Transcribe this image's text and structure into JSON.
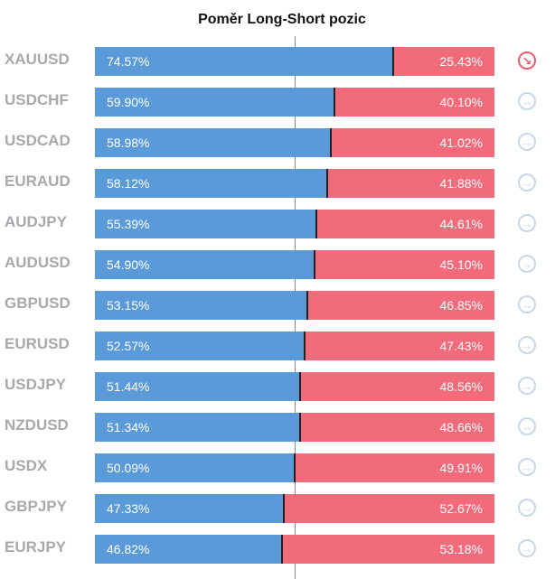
{
  "chart_data": {
    "type": "bar",
    "title": "Poměr Long-Short pozic",
    "categories": [
      "XAUUSD",
      "USDCHF",
      "USDCAD",
      "EURAUD",
      "AUDJPY",
      "AUDUSD",
      "GBPUSD",
      "EURUSD",
      "USDJPY",
      "NZDUSD",
      "USDX",
      "GBPJPY",
      "EURJPY"
    ],
    "series": [
      {
        "values": [
          74.57,
          59.9,
          58.98,
          58.12,
          55.39,
          54.9,
          53.15,
          52.57,
          51.44,
          51.34,
          50.09,
          47.33,
          46.82
        ]
      },
      {
        "values": [
          25.43,
          40.1,
          41.02,
          41.88,
          44.61,
          45.1,
          46.85,
          47.43,
          48.56,
          48.66,
          49.91,
          52.67,
          53.18
        ]
      }
    ],
    "long_labels": [
      "74.57%",
      "59.90%",
      "58.98%",
      "58.12%",
      "55.39%",
      "54.90%",
      "53.15%",
      "52.57%",
      "51.44%",
      "51.34%",
      "50.09%",
      "47.33%",
      "46.82%"
    ],
    "short_labels": [
      "25.43%",
      "40.10%",
      "41.02%",
      "41.88%",
      "44.61%",
      "45.10%",
      "46.85%",
      "47.43%",
      "48.56%",
      "48.66%",
      "49.91%",
      "52.67%",
      "53.18%"
    ],
    "icons": [
      "arrow-down-right-icon",
      "arrow-right-icon",
      "arrow-right-icon",
      "arrow-right-icon",
      "arrow-right-icon",
      "arrow-right-icon",
      "arrow-right-icon",
      "arrow-right-icon",
      "arrow-right-icon",
      "arrow-right-icon",
      "arrow-right-icon",
      "arrow-right-icon",
      "arrow-right-icon"
    ],
    "xlim": [
      0,
      100
    ],
    "colors": {
      "long": "#5b9ad8",
      "short": "#f26b7a",
      "icon_neutral": "#c9d8e6",
      "icon_down": "#f15a6c"
    },
    "legend": "none",
    "grid": false
  }
}
